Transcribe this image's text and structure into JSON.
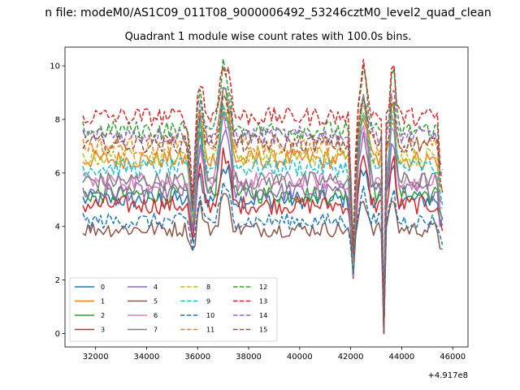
{
  "figure": {
    "suptitle": "n file: modeM0/AS1C09_011T08_9000006492_53246cztM0_level2_quad_clean",
    "title": "Quadrant 1 module wise count rates with 100.0s bins.",
    "offset_label": "+4.917e8"
  },
  "chart_data": {
    "type": "line",
    "title": "Quadrant 1 module wise count rates with 100.0s bins.",
    "xlabel": "",
    "ylabel": "",
    "x_offset": 491700000,
    "xlim": [
      30800,
      46600
    ],
    "ylim": [
      -0.5,
      10.7
    ],
    "x_ticks": [
      32000,
      34000,
      36000,
      38000,
      40000,
      42000,
      44000,
      46000
    ],
    "y_ticks": [
      0,
      2,
      4,
      6,
      8,
      10
    ],
    "x_tick_labels": [
      "32000",
      "34000",
      "36000",
      "38000",
      "40000",
      "42000",
      "44000",
      "46000"
    ],
    "y_tick_labels": [
      "0",
      "2",
      "4",
      "6",
      "8",
      "10"
    ],
    "legend_position": "lower-left",
    "legend_columns": 4,
    "x_start": 31500,
    "x_end": 45600,
    "x_step": 100,
    "series": [
      {
        "name": "0",
        "color": "#1f77b4",
        "dash": "solid",
        "base": 5.0,
        "noise": 0.35,
        "peak": 6.2,
        "dip": 3.4
      },
      {
        "name": "1",
        "color": "#ff7f0e",
        "dash": "solid",
        "base": 6.5,
        "noise": 0.35,
        "peak": 8.3,
        "dip": 4.4
      },
      {
        "name": "2",
        "color": "#2ca02c",
        "dash": "solid",
        "base": 5.2,
        "noise": 0.35,
        "peak": 9.4,
        "dip": 3.6
      },
      {
        "name": "3",
        "color": "#d62728",
        "dash": "solid",
        "base": 4.8,
        "noise": 0.35,
        "peak": 6.6,
        "dip": 3.2
      },
      {
        "name": "4",
        "color": "#9467bd",
        "dash": "solid",
        "base": 5.3,
        "noise": 0.35,
        "peak": 7.6,
        "dip": 3.5
      },
      {
        "name": "5",
        "color": "#8c564b",
        "dash": "solid",
        "base": 3.9,
        "noise": 0.3,
        "peak": 5.2,
        "dip": 2.9
      },
      {
        "name": "6",
        "color": "#e377c2",
        "dash": "solid",
        "base": 5.7,
        "noise": 0.35,
        "peak": 7.9,
        "dip": 3.8
      },
      {
        "name": "7",
        "color": "#7f7f7f",
        "dash": "solid",
        "base": 5.7,
        "noise": 0.35,
        "peak": 8.4,
        "dip": 3.8
      },
      {
        "name": "8",
        "color": "#bcbd22",
        "dash": "dashed",
        "base": 6.6,
        "noise": 0.35,
        "peak": 8.5,
        "dip": 4.2
      },
      {
        "name": "9",
        "color": "#17becf",
        "dash": "dashed",
        "base": 6.2,
        "noise": 0.35,
        "peak": 8.4,
        "dip": 4.0
      },
      {
        "name": "10",
        "color": "#1f77b4",
        "dash": "dashed",
        "base": 4.2,
        "noise": 0.3,
        "peak": 5.4,
        "dip": 3.0
      },
      {
        "name": "11",
        "color": "#ff7f0e",
        "dash": "dashed",
        "base": 7.0,
        "noise": 0.35,
        "peak": 8.9,
        "dip": 4.5
      },
      {
        "name": "12",
        "color": "#2ca02c",
        "dash": "dashed",
        "base": 7.6,
        "noise": 0.35,
        "peak": 9.9,
        "dip": 4.6
      },
      {
        "name": "13",
        "color": "#d62728",
        "dash": "dashed",
        "base": 8.1,
        "noise": 0.35,
        "peak": 10.2,
        "dip": 4.8
      },
      {
        "name": "14",
        "color": "#9467bd",
        "dash": "dashed",
        "base": 7.4,
        "noise": 0.35,
        "peak": 9.0,
        "dip": 4.5
      },
      {
        "name": "15",
        "color": "#8c564b",
        "dash": "dashed",
        "base": 7.1,
        "noise": 0.35,
        "peak": 8.8,
        "dip": 4.3
      }
    ]
  }
}
